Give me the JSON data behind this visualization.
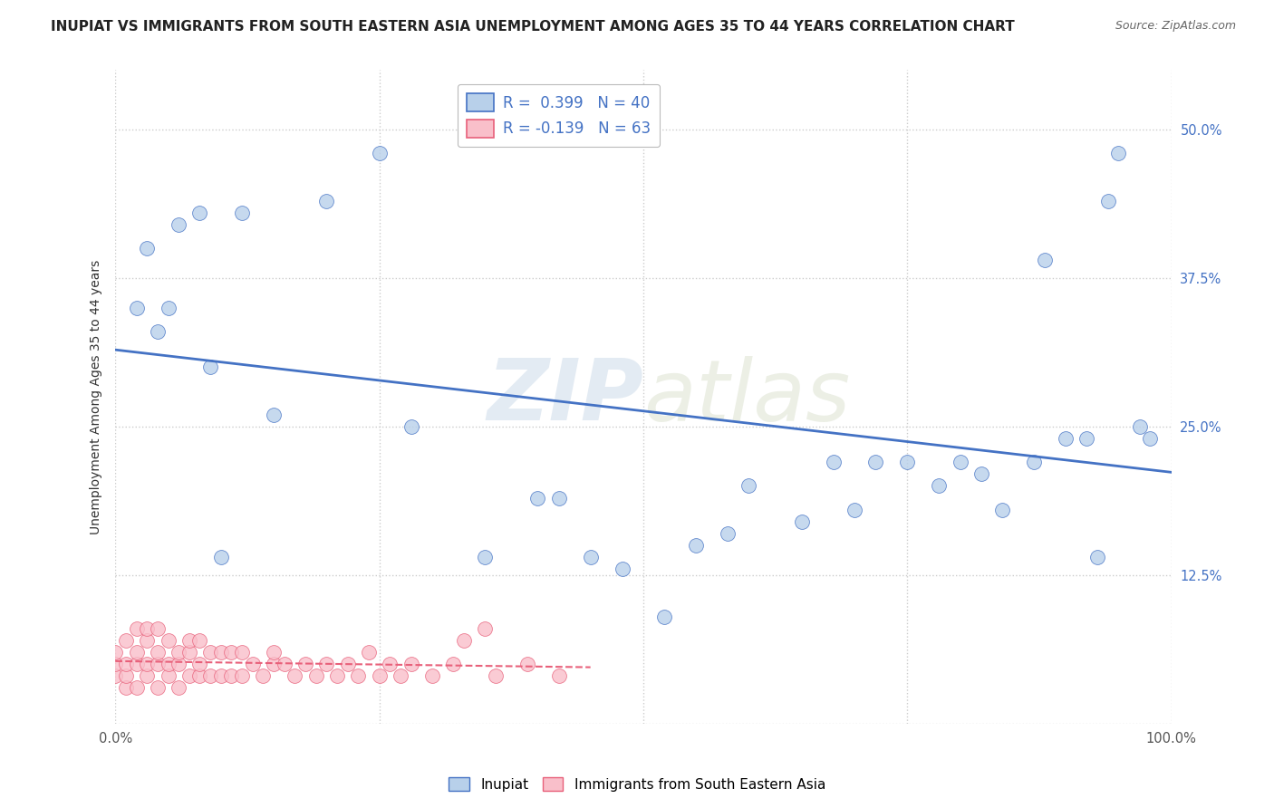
{
  "title": "INUPIAT VS IMMIGRANTS FROM SOUTH EASTERN ASIA UNEMPLOYMENT AMONG AGES 35 TO 44 YEARS CORRELATION CHART",
  "source": "Source: ZipAtlas.com",
  "ylabel": "Unemployment Among Ages 35 to 44 years",
  "xlim": [
    0,
    1.0
  ],
  "ylim": [
    0,
    0.55
  ],
  "xticks": [
    0.0,
    0.25,
    0.5,
    0.75,
    1.0
  ],
  "xticklabels": [
    "0.0%",
    "",
    "",
    "",
    "100.0%"
  ],
  "yticks": [
    0.0,
    0.125,
    0.25,
    0.375,
    0.5
  ],
  "yticklabels": [
    "",
    "12.5%",
    "25.0%",
    "37.5%",
    "50.0%"
  ],
  "r_inupiat": 0.399,
  "n_inupiat": 40,
  "r_sea": -0.139,
  "n_sea": 63,
  "inupiat_color": "#b8d0ea",
  "sea_color": "#f9bfca",
  "inupiat_line_color": "#4472c4",
  "sea_line_color": "#e8607a",
  "watermark_zip": "ZIP",
  "watermark_atlas": "atlas",
  "inupiat_scatter_x": [
    0.02,
    0.03,
    0.04,
    0.05,
    0.06,
    0.08,
    0.09,
    0.1,
    0.12,
    0.15,
    0.2,
    0.25,
    0.28,
    0.35,
    0.4,
    0.42,
    0.45,
    0.48,
    0.52,
    0.55,
    0.58,
    0.6,
    0.65,
    0.68,
    0.7,
    0.72,
    0.75,
    0.78,
    0.8,
    0.82,
    0.84,
    0.87,
    0.88,
    0.9,
    0.92,
    0.93,
    0.94,
    0.95,
    0.97,
    0.98
  ],
  "inupiat_scatter_y": [
    0.35,
    0.4,
    0.33,
    0.35,
    0.42,
    0.43,
    0.3,
    0.14,
    0.43,
    0.26,
    0.44,
    0.48,
    0.25,
    0.14,
    0.19,
    0.19,
    0.14,
    0.13,
    0.09,
    0.15,
    0.16,
    0.2,
    0.17,
    0.22,
    0.18,
    0.22,
    0.22,
    0.2,
    0.22,
    0.21,
    0.18,
    0.22,
    0.39,
    0.24,
    0.24,
    0.14,
    0.44,
    0.48,
    0.25,
    0.24
  ],
  "sea_scatter_x": [
    0.0,
    0.0,
    0.0,
    0.01,
    0.01,
    0.01,
    0.01,
    0.02,
    0.02,
    0.02,
    0.02,
    0.03,
    0.03,
    0.03,
    0.03,
    0.04,
    0.04,
    0.04,
    0.04,
    0.05,
    0.05,
    0.05,
    0.06,
    0.06,
    0.06,
    0.07,
    0.07,
    0.07,
    0.08,
    0.08,
    0.08,
    0.09,
    0.09,
    0.1,
    0.1,
    0.11,
    0.11,
    0.12,
    0.12,
    0.13,
    0.14,
    0.15,
    0.15,
    0.16,
    0.17,
    0.18,
    0.19,
    0.2,
    0.21,
    0.22,
    0.23,
    0.24,
    0.25,
    0.26,
    0.27,
    0.28,
    0.3,
    0.32,
    0.33,
    0.35,
    0.36,
    0.39,
    0.42
  ],
  "sea_scatter_y": [
    0.04,
    0.05,
    0.06,
    0.03,
    0.04,
    0.05,
    0.07,
    0.03,
    0.05,
    0.06,
    0.08,
    0.04,
    0.05,
    0.07,
    0.08,
    0.03,
    0.05,
    0.06,
    0.08,
    0.04,
    0.05,
    0.07,
    0.03,
    0.05,
    0.06,
    0.04,
    0.06,
    0.07,
    0.04,
    0.05,
    0.07,
    0.04,
    0.06,
    0.04,
    0.06,
    0.04,
    0.06,
    0.04,
    0.06,
    0.05,
    0.04,
    0.05,
    0.06,
    0.05,
    0.04,
    0.05,
    0.04,
    0.05,
    0.04,
    0.05,
    0.04,
    0.06,
    0.04,
    0.05,
    0.04,
    0.05,
    0.04,
    0.05,
    0.07,
    0.08,
    0.04,
    0.05,
    0.04
  ],
  "background_color": "#ffffff",
  "plot_bg_color": "#ffffff",
  "grid_color": "#cccccc",
  "title_fontsize": 11,
  "label_fontsize": 10,
  "tick_fontsize": 10.5
}
